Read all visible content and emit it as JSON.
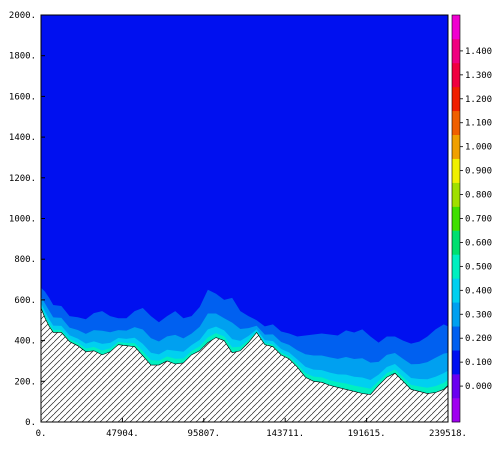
{
  "chart_data": {
    "type": "area",
    "title": "",
    "xlabel": "",
    "ylabel": "",
    "xlim": [
      0,
      239518
    ],
    "ylim": [
      0,
      2000
    ],
    "grid": false,
    "legend_placement": "right colorbar",
    "x_tick_labels": [
      "0.",
      "47904.",
      "95807.",
      "143711.",
      "191615.",
      "239518."
    ],
    "x_ticks": [
      0,
      47904,
      95807,
      143711,
      191615,
      239518
    ],
    "y_tick_labels": [
      "0.",
      "200.",
      "400.",
      "600.",
      "800.",
      "1000.",
      "1200.",
      "1400.",
      "1600.",
      "1800.",
      "2000."
    ],
    "y_ticks": [
      0,
      200,
      400,
      600,
      800,
      1000,
      1200,
      1400,
      1600,
      1800,
      2000
    ],
    "background_color": "#0010F0",
    "terrain": {
      "hatched": true,
      "x": [
        0,
        2400,
        4800,
        7200,
        12000,
        16800,
        21600,
        26400,
        31100,
        36000,
        40700,
        45500,
        50300,
        55100,
        59900,
        64700,
        69400,
        74200,
        79000,
        83800,
        88600,
        93400,
        98200,
        103000,
        107800,
        112500,
        117300,
        122100,
        126900,
        131700,
        136500,
        141300,
        146000,
        150800,
        155600,
        160400,
        165200,
        170000,
        174700,
        179500,
        184300,
        189100,
        193900,
        198700,
        203500,
        208300,
        213100,
        217800,
        222600,
        227400,
        232200,
        237000,
        239518
      ],
      "y": [
        560,
        510,
        470,
        440,
        440,
        395,
        375,
        345,
        350,
        330,
        345,
        380,
        375,
        370,
        325,
        280,
        280,
        300,
        285,
        290,
        330,
        350,
        390,
        415,
        400,
        340,
        350,
        390,
        440,
        380,
        370,
        330,
        310,
        270,
        220,
        200,
        195,
        180,
        170,
        160,
        150,
        140,
        135,
        180,
        220,
        240,
        200,
        160,
        150,
        140,
        145,
        160,
        180
      ]
    },
    "surface": {
      "x": [
        0,
        2400,
        4800,
        7200,
        12000,
        16800,
        21600,
        26400,
        31100,
        36000,
        40700,
        45500,
        50300,
        55100,
        59900,
        64700,
        69400,
        74200,
        79000,
        83800,
        88600,
        93400,
        98200,
        103000,
        107800,
        112500,
        117300,
        122100,
        126900,
        131700,
        136500,
        141300,
        146000,
        150800,
        155600,
        160400,
        165200,
        170000,
        174700,
        179500,
        184300,
        189100,
        193900,
        198700,
        203500,
        208300,
        213100,
        217800,
        222600,
        227400,
        232200,
        237000,
        239518
      ],
      "y": [
        660,
        640,
        610,
        575,
        570,
        520,
        515,
        505,
        535,
        545,
        520,
        510,
        510,
        545,
        560,
        520,
        490,
        520,
        545,
        510,
        520,
        565,
        650,
        630,
        600,
        610,
        545,
        520,
        500,
        470,
        480,
        445,
        435,
        420,
        425,
        430,
        435,
        430,
        425,
        450,
        440,
        455,
        420,
        390,
        420,
        420,
        400,
        385,
        395,
        420,
        455,
        480,
        470
      ]
    },
    "colorbar": {
      "levels": [
        "0.000",
        "0.100",
        "0.200",
        "0.300",
        "0.400",
        "0.500",
        "0.600",
        "0.700",
        "0.800",
        "0.900",
        "1.000",
        "1.100",
        "1.200",
        "1.300",
        "1.400"
      ],
      "colors": [
        "#A000F0",
        "#6A00F0",
        "#0010F0",
        "#0060F0",
        "#00A0F0",
        "#00D0F0",
        "#00F0C0",
        "#00E070",
        "#40E000",
        "#A0E000",
        "#F0F000",
        "#F0A000",
        "#F06000",
        "#F02000",
        "#F00040",
        "#F00080",
        "#F000D0"
      ]
    }
  }
}
